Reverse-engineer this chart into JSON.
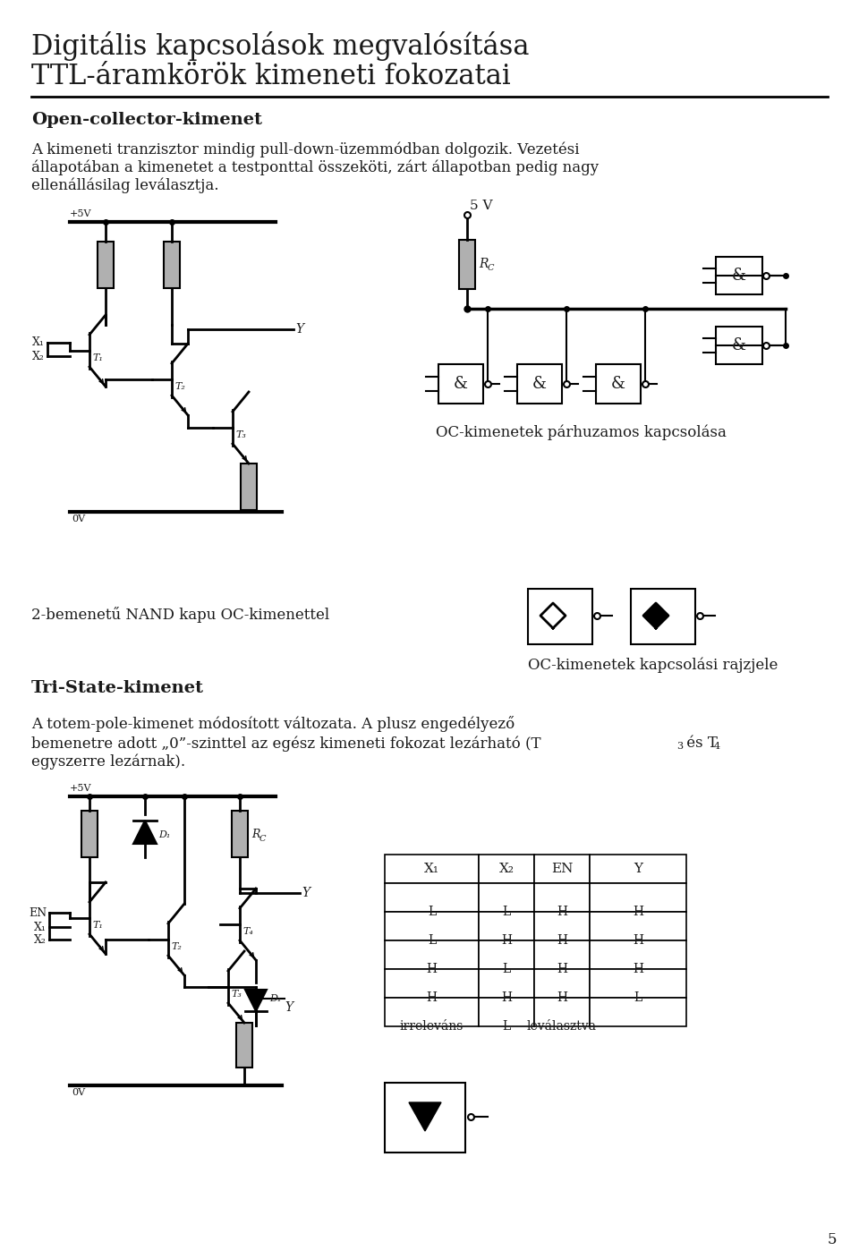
{
  "title_line1": "Digitális kapcsolások megvalósítása",
  "title_line2": "TTL-áramkörök kimeneti fokozatai",
  "section1_title": "Open-collector-kimenet",
  "body1a": "A kimeneti tranzisztor mindig pull-down-üzemmódban dolgozik. Vezetési",
  "body1b": "állapotában a kimenetet a testponttal összeköti, zárt állapotban pedig nagy",
  "body1c": "ellenállásilag leválasztja.",
  "oc_parallel": "OC-kimenetek párhuzamos kapcsolása",
  "nand_label": "2-bemenetű NAND kapu OC-kimenettel",
  "oc_symbol_label": "OC-kimenetek kapcsolási rajzjele",
  "section2_title": "Tri-State-kimenet",
  "body2a": "A totem-pole-kimenet módosított változata. A plusz engedélyező",
  "body2b": "bemenetre adott „0”-szinttel az egész kimeneti fokozat lezárható (T",
  "body2b_end": " és T",
  "body2c": "egyszerre lezárnak).",
  "sub3": "3",
  "sub4": "4",
  "tbl_h": [
    "X₁",
    "X₂",
    "EN",
    "Y"
  ],
  "tbl_rows": [
    [
      "L",
      "L",
      "H",
      "H"
    ],
    [
      "L",
      "H",
      "H",
      "H"
    ],
    [
      "H",
      "L",
      "H",
      "H"
    ],
    [
      "H",
      "H",
      "H",
      "L"
    ],
    [
      "irreleváns",
      "L",
      "leválasztva",
      ""
    ]
  ],
  "page_num": "5",
  "bg": "#ffffff",
  "fg": "#1a1a1a"
}
